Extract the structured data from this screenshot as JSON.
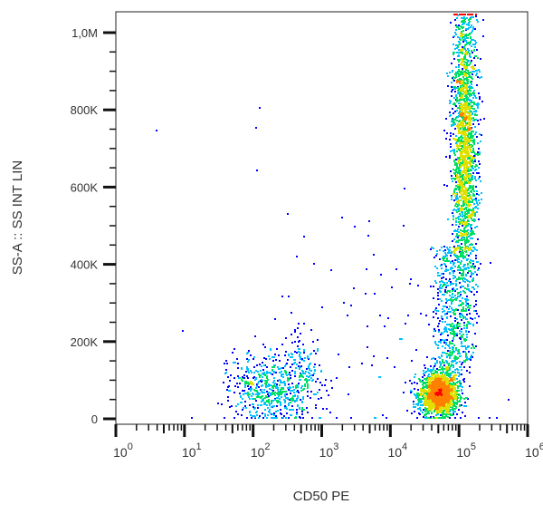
{
  "chart_data": {
    "type": "scatter",
    "subtype": "flow-cytometry-density-dot-plot",
    "xlabel": "CD50 PE",
    "ylabel": "SS-A :: SS INT LIN",
    "x_scale": "log",
    "xlim": [
      1,
      1000000
    ],
    "x_ticks": [
      {
        "value": 1,
        "base": "10",
        "exp": "0"
      },
      {
        "value": 10,
        "base": "10",
        "exp": "1"
      },
      {
        "value": 100,
        "base": "10",
        "exp": "2"
      },
      {
        "value": 1000,
        "base": "10",
        "exp": "3"
      },
      {
        "value": 10000,
        "base": "10",
        "exp": "4"
      },
      {
        "value": 100000,
        "base": "10",
        "exp": "5"
      },
      {
        "value": 1000000,
        "base": "10",
        "exp": "6"
      }
    ],
    "y_scale": "linear",
    "ylim": [
      0,
      1050000
    ],
    "y_ticks": [
      {
        "value": 0,
        "label": "0"
      },
      {
        "value": 200000,
        "label": "200K"
      },
      {
        "value": 400000,
        "label": "400K"
      },
      {
        "value": 600000,
        "label": "600K"
      },
      {
        "value": 800000,
        "label": "800K"
      },
      {
        "value": 1000000,
        "label": "1,0M"
      }
    ],
    "grid": false,
    "color_scale": [
      "#0000ff",
      "#00c0ff",
      "#00e060",
      "#e0e000",
      "#ff8000",
      "#ff0000"
    ],
    "populations": [
      {
        "log10_x_center": 4.7,
        "log10_x_sd": 0.14,
        "y_center": 65000,
        "y_sd": 28000,
        "count": 1700
      },
      {
        "log10_x_center": 5.07,
        "log10_x_sd": 0.09,
        "y_min": 150000,
        "y_max": 1050000,
        "y_peak": 700000,
        "count": 2600
      },
      {
        "log10_x_center": 4.85,
        "log10_x_sd": 0.12,
        "y_min": 100000,
        "y_max": 450000,
        "count": 500
      },
      {
        "log10_x_center": 2.25,
        "log10_x_sd": 0.3,
        "y_center": 80000,
        "y_sd": 45000,
        "count": 550
      },
      {
        "log10_x_center": 2.7,
        "log10_x_sd": 0.15,
        "y_center": 120000,
        "y_sd": 50000,
        "count": 150
      },
      {
        "log10_x_center": 3.3,
        "log10_x_sd": 1.0,
        "y_center": 250000,
        "y_sd": 200000,
        "count": 90
      }
    ]
  }
}
